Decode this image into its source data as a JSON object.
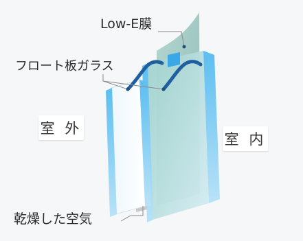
{
  "labels": {
    "lowe": "Low-E膜",
    "float_glass": "フロート板ガラス",
    "outdoor": "室 外",
    "indoor": "室 内",
    "dry_air": "乾燥した空気"
  },
  "colors": {
    "background": "#f6f7f8",
    "glass_edge": "#4fb5ea",
    "glass_face": "#d7ecf7",
    "inner_glass_face": "#8ec8c3",
    "lowe_film": "#8fbfb8",
    "leader_line": "#8a8a8a"
  }
}
